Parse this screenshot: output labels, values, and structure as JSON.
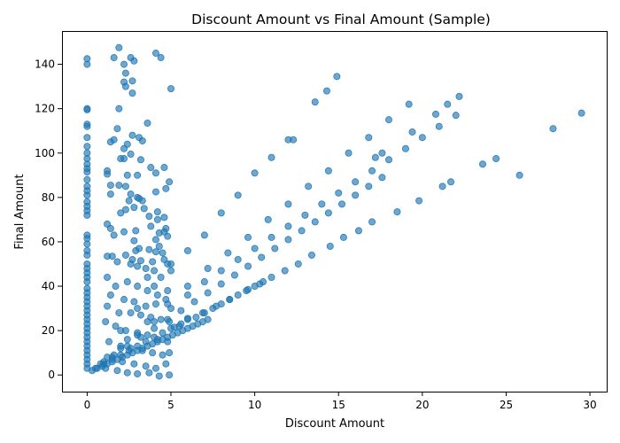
{
  "chart_data": {
    "type": "scatter",
    "title": "Discount Amount vs Final Amount (Sample)",
    "xlabel": "Discount Amount",
    "ylabel": "Final Amount",
    "xlim": [
      -1.5,
      31
    ],
    "ylim": [
      -7.5,
      155
    ],
    "xticks": [
      0,
      5,
      10,
      15,
      20,
      25,
      30
    ],
    "yticks": [
      0,
      20,
      40,
      60,
      80,
      100,
      120,
      140
    ],
    "grid": false,
    "marker_color": "#1f77b4",
    "marker_alpha": 0.65,
    "series": [
      {
        "points": [
          [
            0,
            142.5
          ],
          [
            0,
            140
          ],
          [
            0,
            120
          ],
          [
            0,
            119.5
          ],
          [
            0,
            113
          ],
          [
            0,
            112
          ],
          [
            0,
            107
          ],
          [
            0,
            103
          ],
          [
            0,
            100
          ],
          [
            0,
            97.5
          ],
          [
            0,
            95
          ],
          [
            0,
            93
          ],
          [
            0,
            91.5
          ],
          [
            0,
            88
          ],
          [
            0,
            85
          ],
          [
            0,
            83
          ],
          [
            0,
            81
          ],
          [
            0,
            78
          ],
          [
            0,
            76
          ],
          [
            0,
            74
          ],
          [
            0,
            72
          ],
          [
            0,
            63
          ],
          [
            0,
            61.5
          ],
          [
            0,
            59
          ],
          [
            0,
            56
          ],
          [
            0,
            54
          ],
          [
            0,
            50
          ],
          [
            0,
            48
          ],
          [
            0,
            46
          ],
          [
            0,
            44
          ],
          [
            0,
            42
          ],
          [
            0,
            39
          ],
          [
            0,
            37
          ],
          [
            0,
            35
          ],
          [
            0,
            33
          ],
          [
            0,
            31
          ],
          [
            0,
            29
          ],
          [
            0,
            27
          ],
          [
            0,
            25
          ],
          [
            0,
            23
          ],
          [
            0,
            21
          ],
          [
            0,
            19
          ],
          [
            0,
            17
          ],
          [
            0,
            15
          ],
          [
            0,
            13
          ],
          [
            0,
            11
          ],
          [
            0,
            9
          ],
          [
            0,
            7
          ],
          [
            0,
            5
          ],
          [
            0,
            3
          ],
          [
            1.9,
            147.5
          ],
          [
            2.2,
            140
          ],
          [
            2.6,
            143
          ],
          [
            1.6,
            143
          ],
          [
            2.8,
            141.5
          ],
          [
            2.3,
            136
          ],
          [
            2.2,
            132
          ],
          [
            2.7,
            132.5
          ],
          [
            2.3,
            130
          ],
          [
            4.1,
            145
          ],
          [
            4.4,
            143
          ],
          [
            5,
            129
          ],
          [
            2.7,
            127
          ],
          [
            1.9,
            120
          ],
          [
            3.6,
            113.5
          ],
          [
            1.8,
            111
          ],
          [
            2.7,
            108
          ],
          [
            3.1,
            107
          ],
          [
            1.6,
            106
          ],
          [
            3.3,
            105.5
          ],
          [
            1.4,
            105
          ],
          [
            2.4,
            104
          ],
          [
            2.2,
            102
          ],
          [
            2.6,
            99.5
          ],
          [
            2,
            97.5
          ],
          [
            2.2,
            97.5
          ],
          [
            3.2,
            97
          ],
          [
            3.8,
            93.5
          ],
          [
            4.6,
            93.5
          ],
          [
            1.2,
            92
          ],
          [
            1.2,
            90.5
          ],
          [
            2.4,
            90
          ],
          [
            3,
            90
          ],
          [
            4.1,
            91
          ],
          [
            4.9,
            87
          ],
          [
            1.4,
            85.5
          ],
          [
            1.9,
            85.5
          ],
          [
            2.3,
            85
          ],
          [
            4.7,
            84
          ],
          [
            2.6,
            81.5
          ],
          [
            4.1,
            82.5
          ],
          [
            1.4,
            81.5
          ],
          [
            3,
            80
          ],
          [
            3.1,
            79.5
          ],
          [
            2.5,
            78.5
          ],
          [
            3.3,
            78.5
          ],
          [
            2.8,
            75.5
          ],
          [
            3.4,
            75
          ],
          [
            4.2,
            73.5
          ],
          [
            2,
            73
          ],
          [
            2.3,
            74.5
          ],
          [
            3.7,
            71.5
          ],
          [
            4.6,
            71
          ],
          [
            4.2,
            70
          ],
          [
            1.2,
            68
          ],
          [
            3.8,
            67
          ],
          [
            1.4,
            66
          ],
          [
            2.9,
            65
          ],
          [
            4.7,
            66
          ],
          [
            4.6,
            64.5
          ],
          [
            4.3,
            64
          ],
          [
            2.2,
            64.5
          ],
          [
            1.6,
            63
          ],
          [
            4.8,
            62.5
          ],
          [
            2.8,
            60.5
          ],
          [
            4.1,
            61
          ],
          [
            4.3,
            58
          ],
          [
            3.1,
            57
          ],
          [
            2.9,
            56
          ],
          [
            3.7,
            56.5
          ],
          [
            4.1,
            55.5
          ],
          [
            4.5,
            55
          ],
          [
            1.2,
            53.5
          ],
          [
            1.5,
            53.5
          ],
          [
            2.3,
            54
          ],
          [
            2.7,
            52
          ],
          [
            3.2,
            51.5
          ],
          [
            3.9,
            51
          ],
          [
            4.6,
            52
          ],
          [
            4.8,
            50
          ],
          [
            1.8,
            51
          ],
          [
            2.6,
            50
          ],
          [
            3,
            49
          ],
          [
            3.5,
            48
          ],
          [
            4,
            47
          ],
          [
            5,
            47
          ],
          [
            3.6,
            44
          ],
          [
            4.4,
            44
          ],
          [
            1.2,
            44
          ],
          [
            1.7,
            40
          ],
          [
            2.4,
            42
          ],
          [
            3,
            40
          ],
          [
            3.6,
            38
          ],
          [
            4.2,
            36
          ],
          [
            4.8,
            38
          ],
          [
            1.4,
            36
          ],
          [
            2.2,
            34
          ],
          [
            2.8,
            33
          ],
          [
            3.5,
            31
          ],
          [
            4.1,
            32
          ],
          [
            4.7,
            34
          ],
          [
            1.2,
            31
          ],
          [
            1.9,
            28
          ],
          [
            2.6,
            28
          ],
          [
            3.2,
            27
          ],
          [
            3.8,
            26
          ],
          [
            4.4,
            25
          ],
          [
            4.9,
            24
          ],
          [
            1.1,
            24
          ],
          [
            1.7,
            22
          ],
          [
            2.3,
            20
          ],
          [
            3,
            19
          ],
          [
            3.6,
            18
          ],
          [
            4.2,
            16
          ],
          [
            4.8,
            15
          ],
          [
            1.3,
            15
          ],
          [
            2,
            13
          ],
          [
            2.6,
            12
          ],
          [
            3.3,
            11
          ],
          [
            3.9,
            10
          ],
          [
            4.5,
            9
          ],
          [
            4.9,
            10
          ],
          [
            1.5,
            8
          ],
          [
            2.1,
            6
          ],
          [
            2.8,
            5
          ],
          [
            3.5,
            4
          ],
          [
            4.1,
            3
          ],
          [
            4.7,
            5
          ],
          [
            1.1,
            3
          ],
          [
            1.8,
            2
          ],
          [
            2.4,
            1
          ],
          [
            3,
            0.5
          ],
          [
            3.7,
            1
          ],
          [
            4.3,
            -0.5
          ],
          [
            4.9,
            0
          ],
          [
            0.3,
            2
          ],
          [
            0.6,
            3
          ],
          [
            0.9,
            4
          ],
          [
            1.2,
            5
          ],
          [
            1.5,
            6
          ],
          [
            1.8,
            7
          ],
          [
            2.1,
            8
          ],
          [
            2.4,
            9
          ],
          [
            2.7,
            10
          ],
          [
            3,
            11
          ],
          [
            3.3,
            12
          ],
          [
            3.6,
            13
          ],
          [
            3.9,
            14
          ],
          [
            4.2,
            15
          ],
          [
            4.5,
            16
          ],
          [
            4.8,
            17
          ],
          [
            5.1,
            18
          ],
          [
            5.4,
            19
          ],
          [
            5.7,
            20
          ],
          [
            6,
            21
          ],
          [
            6.3,
            22
          ],
          [
            6.6,
            23
          ],
          [
            6.9,
            24
          ],
          [
            7.2,
            25
          ],
          [
            0.5,
            3
          ],
          [
            1,
            5
          ],
          [
            1.5,
            7
          ],
          [
            2,
            9
          ],
          [
            2.5,
            11
          ],
          [
            3,
            13
          ],
          [
            3.5,
            15
          ],
          [
            4,
            17
          ],
          [
            4.5,
            19
          ],
          [
            5,
            21
          ],
          [
            5.5,
            22
          ],
          [
            6,
            25
          ],
          [
            6.5,
            26
          ],
          [
            7,
            28
          ],
          [
            7.5,
            30
          ],
          [
            8,
            32
          ],
          [
            8.5,
            34
          ],
          [
            9,
            36
          ],
          [
            9.5,
            38
          ],
          [
            10,
            40
          ],
          [
            10.5,
            42
          ],
          [
            11,
            44
          ],
          [
            0.8,
            5
          ],
          [
            1.6,
            9
          ],
          [
            2.4,
            13
          ],
          [
            3.2,
            17
          ],
          [
            4,
            21
          ],
          [
            4.8,
            25
          ],
          [
            5.6,
            29
          ],
          [
            6.4,
            33
          ],
          [
            7.2,
            37
          ],
          [
            8,
            41
          ],
          [
            8.8,
            45
          ],
          [
            9.6,
            49
          ],
          [
            10.4,
            53
          ],
          [
            11.2,
            57
          ],
          [
            12,
            61
          ],
          [
            12.8,
            65
          ],
          [
            13.6,
            69
          ],
          [
            14.4,
            73
          ],
          [
            15.2,
            77
          ],
          [
            16,
            81
          ],
          [
            16.8,
            85
          ],
          [
            17.6,
            89
          ],
          [
            1,
            6
          ],
          [
            2,
            12
          ],
          [
            3,
            18
          ],
          [
            4,
            24
          ],
          [
            5,
            30
          ],
          [
            6,
            36
          ],
          [
            7,
            42
          ],
          [
            8,
            47
          ],
          [
            9,
            52
          ],
          [
            10,
            57
          ],
          [
            11,
            62
          ],
          [
            12,
            67
          ],
          [
            13,
            72
          ],
          [
            14,
            77
          ],
          [
            15,
            82
          ],
          [
            16,
            87
          ],
          [
            17,
            92
          ],
          [
            18,
            97
          ],
          [
            19,
            102
          ],
          [
            20,
            107
          ],
          [
            21,
            112
          ],
          [
            22,
            117
          ],
          [
            1.2,
            8
          ],
          [
            2.4,
            16
          ],
          [
            3.6,
            24
          ],
          [
            4.8,
            32
          ],
          [
            6,
            40
          ],
          [
            7.2,
            48
          ],
          [
            8.4,
            55
          ],
          [
            9.6,
            62
          ],
          [
            10.8,
            70
          ],
          [
            12,
            77
          ],
          [
            13.2,
            85
          ],
          [
            14.4,
            92
          ],
          [
            15.6,
            100
          ],
          [
            16.8,
            107
          ],
          [
            18,
            115
          ],
          [
            19.2,
            122
          ],
          [
            2,
            20
          ],
          [
            4,
            40
          ],
          [
            6,
            56
          ],
          [
            8,
            73
          ],
          [
            10,
            91
          ],
          [
            12,
            106
          ],
          [
            13.6,
            123
          ],
          [
            14.3,
            128
          ],
          [
            14.9,
            134.5
          ],
          [
            3,
            30
          ],
          [
            5,
            50
          ],
          [
            7,
            63
          ],
          [
            9,
            81
          ],
          [
            11,
            98
          ],
          [
            12.3,
            106
          ],
          [
            17.2,
            98
          ],
          [
            17.6,
            100
          ],
          [
            21.2,
            85
          ],
          [
            21.7,
            87
          ],
          [
            23.6,
            95
          ],
          [
            24.4,
            97.5
          ],
          [
            25.8,
            90
          ],
          [
            27.8,
            111
          ],
          [
            29.5,
            118
          ],
          [
            19.4,
            109.5
          ],
          [
            20.8,
            117.5
          ],
          [
            21.5,
            122
          ],
          [
            22.2,
            125.5
          ],
          [
            17,
            69
          ],
          [
            18.5,
            73.5
          ],
          [
            19.8,
            78.5
          ],
          [
            16.2,
            65
          ],
          [
            15.3,
            62
          ],
          [
            14.5,
            58
          ],
          [
            13.4,
            54
          ],
          [
            12.6,
            50
          ],
          [
            11.8,
            47
          ],
          [
            10.3,
            41
          ],
          [
            9.6,
            38.5
          ],
          [
            8.5,
            34
          ],
          [
            7.7,
            31
          ],
          [
            6.9,
            28
          ],
          [
            6,
            25.5
          ],
          [
            5.2,
            21.5
          ],
          [
            5.6,
            23
          ]
        ]
      }
    ]
  }
}
